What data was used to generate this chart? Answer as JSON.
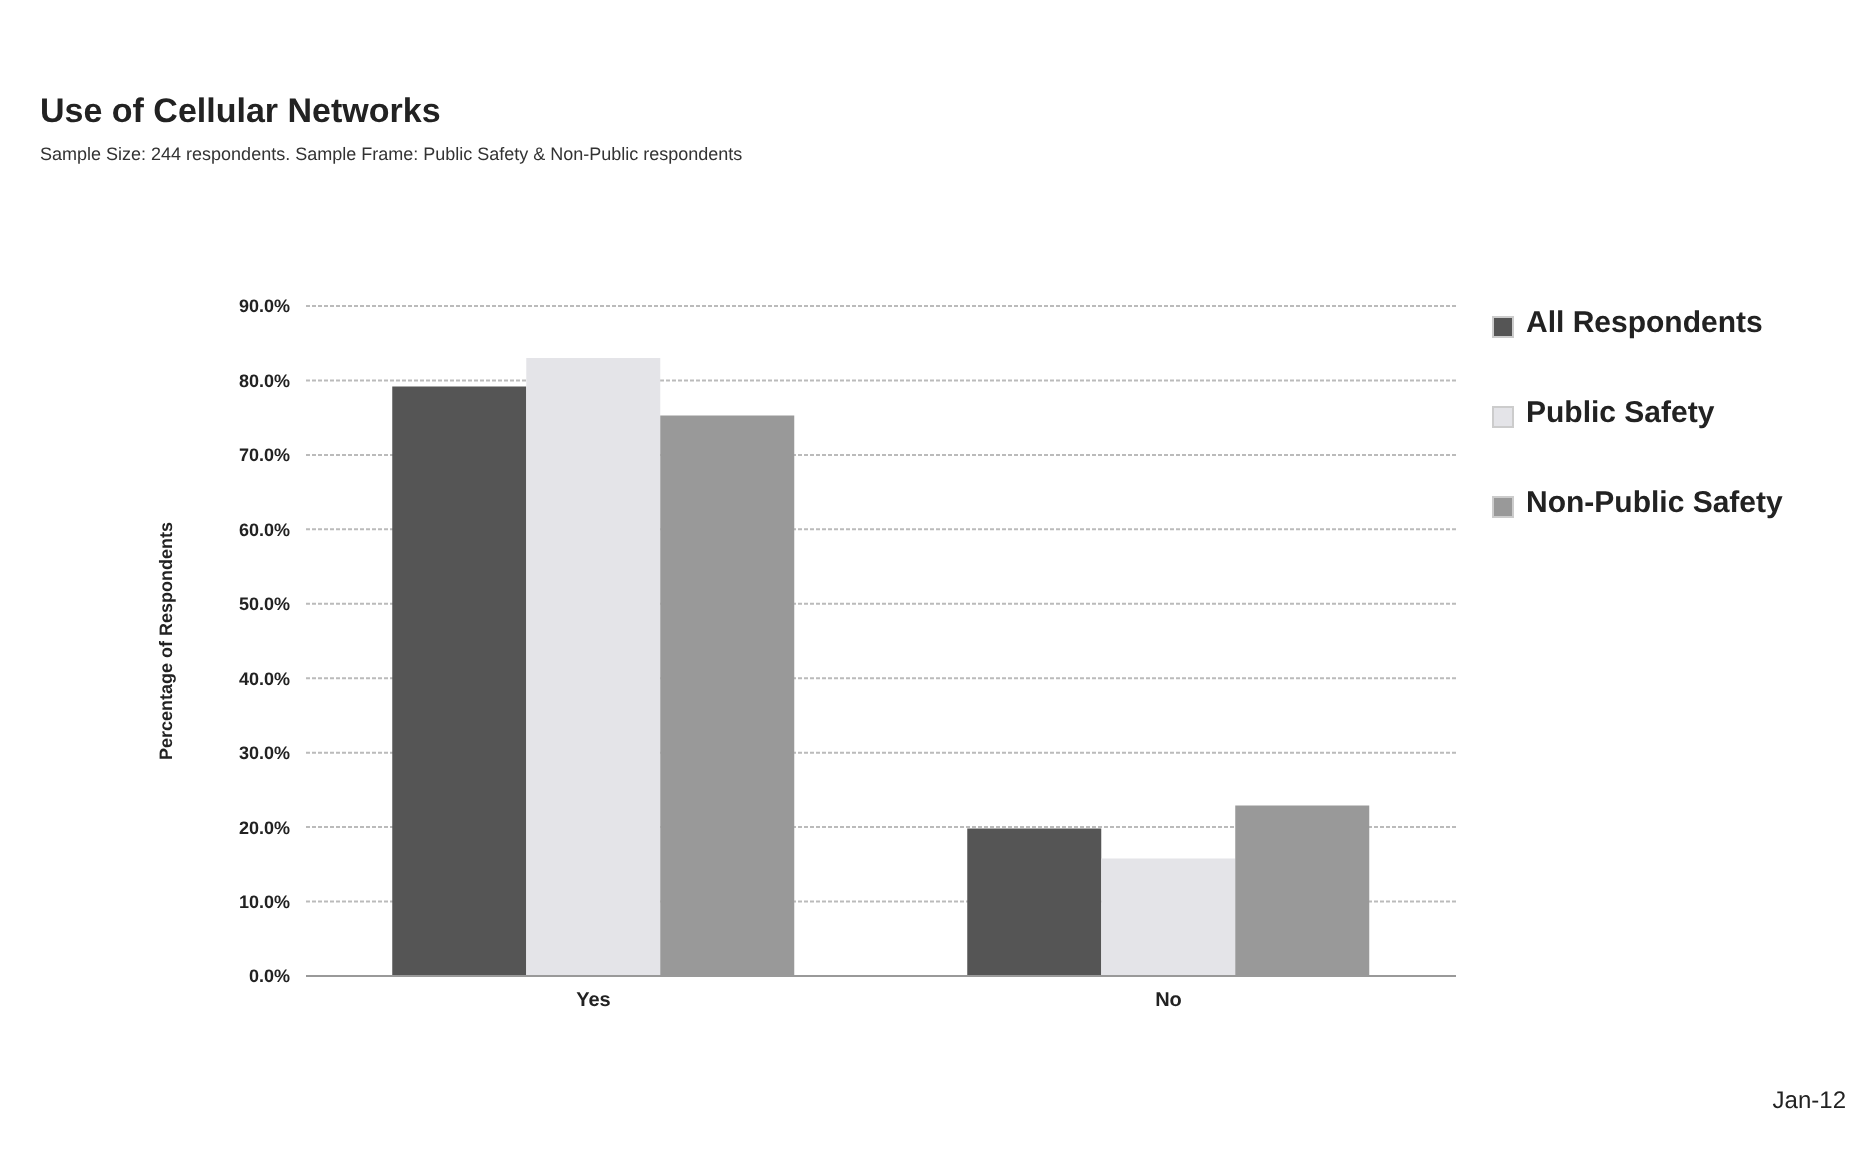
{
  "chart_data": {
    "type": "bar",
    "title": "Use of Cellular Networks",
    "subtitle": "Sample Size: 244 respondents. Sample Frame: Public Safety & Non-Public respondents",
    "ylabel": "Percentage of Respondents",
    "categories": [
      "Yes",
      "No"
    ],
    "series": [
      {
        "name": "All Respondents",
        "color": "#555555",
        "values": [
          79.2,
          19.8
        ]
      },
      {
        "name": "Public Safety",
        "color": "#e4e4e8",
        "values": [
          83.0,
          15.8
        ]
      },
      {
        "name": "Non-Public Safety",
        "color": "#999999",
        "values": [
          75.3,
          22.9
        ]
      }
    ],
    "ylim": [
      0,
      90
    ],
    "yticks": [
      {
        "value": 0,
        "label": "0.0%"
      },
      {
        "value": 10,
        "label": "10.0%"
      },
      {
        "value": 20,
        "label": "20.0%"
      },
      {
        "value": 30,
        "label": "30.0%"
      },
      {
        "value": 40,
        "label": "40.0%"
      },
      {
        "value": 50,
        "label": "50.0%"
      },
      {
        "value": 60,
        "label": "60.0%"
      },
      {
        "value": 70,
        "label": "70.0%"
      },
      {
        "value": 80,
        "label": "80.0%"
      },
      {
        "value": 90,
        "label": "90.0%"
      }
    ],
    "grid": "y",
    "legend": "right",
    "annotations": [
      "Jan-12"
    ]
  }
}
